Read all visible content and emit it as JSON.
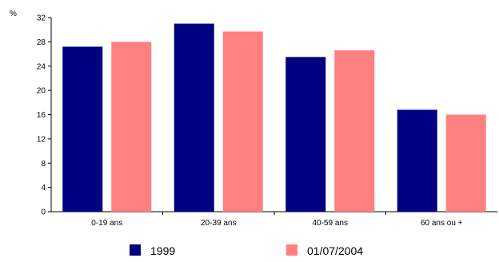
{
  "chart_data": {
    "type": "bar",
    "title": "",
    "xlabel": "",
    "ylabel": "%",
    "ylim": [
      0,
      32
    ],
    "yticks": [
      0,
      4,
      8,
      12,
      16,
      20,
      24,
      28,
      32
    ],
    "grid": false,
    "legend_position": "bottom",
    "categories": [
      "0-19 ans",
      "20-39 ans",
      "40-59 ans",
      "60 ans ou +"
    ],
    "series": [
      {
        "name": "1999",
        "color": "#000080",
        "values": [
          27.2,
          31.0,
          25.5,
          16.8
        ]
      },
      {
        "name": "01/07/2004",
        "color": "#ff8080",
        "values": [
          28.0,
          29.7,
          26.6,
          16.0
        ]
      }
    ]
  }
}
